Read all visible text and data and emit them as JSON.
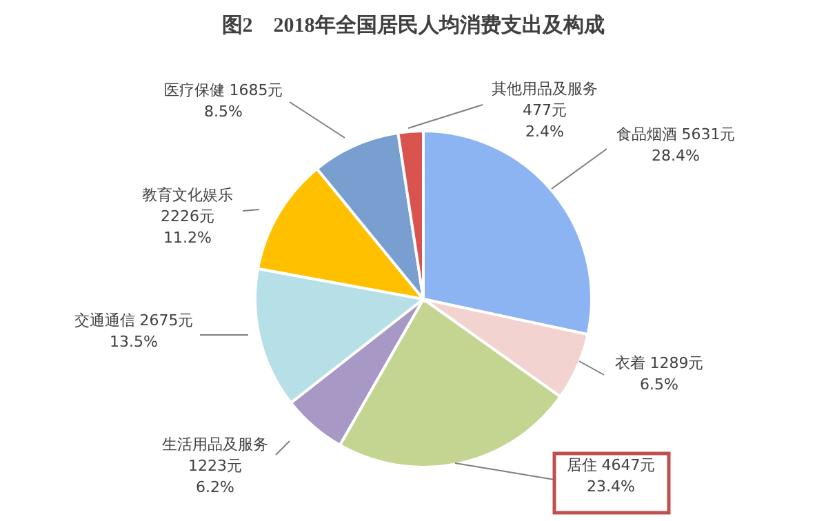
{
  "chart_data": {
    "type": "pie",
    "title": "图2　2018年全国居民人均消费支出及构成",
    "categories": [
      "食品烟酒",
      "衣着",
      "居住",
      "生活用品及服务",
      "交通通信",
      "教育文化娱乐",
      "医疗保健",
      "其他用品及服务"
    ],
    "values": [
      5631,
      1289,
      4647,
      1223,
      2675,
      2226,
      1685,
      477
    ],
    "value_labels": [
      "5631元\n28.4%",
      "1289元\n6.5%",
      "4647元\n23.4%",
      "1223元\n6.2%",
      "2675元\n13.5%",
      "2226元\n11.2%",
      "1685元\n8.5%",
      "477元\n2.4%"
    ],
    "colors": [
      "#8db4f2",
      "#f2d3d0",
      "#c3d591",
      "#a898c6",
      "#b7dfe8",
      "#ffc000",
      "#789fd0",
      "#d9534f"
    ]
  }
}
